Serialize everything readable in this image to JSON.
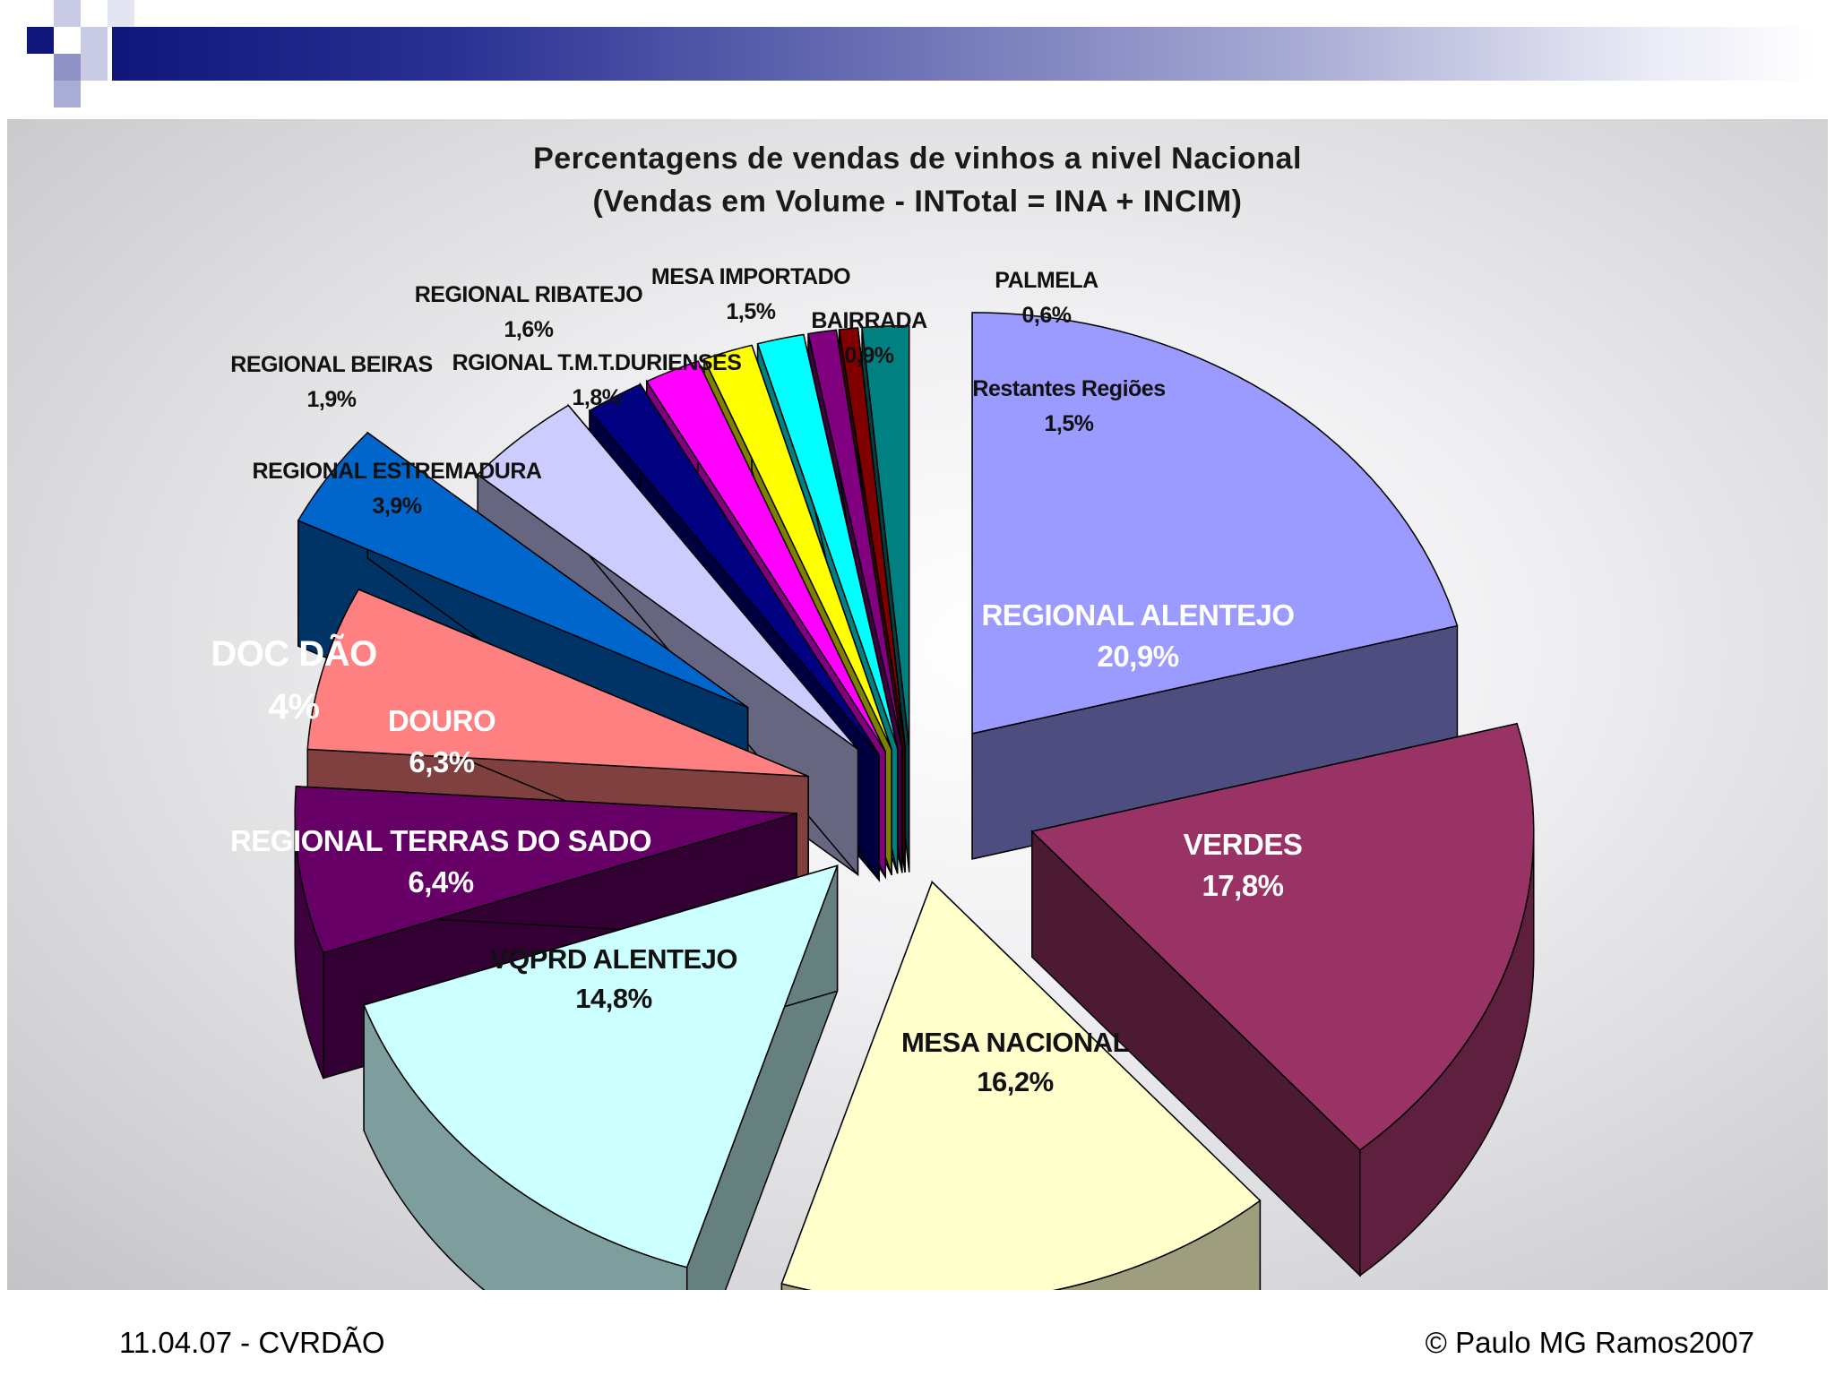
{
  "chart_data": {
    "type": "pie",
    "title": "Percentagens de vendas de vinhos a nivel Nacional",
    "subtitle": "(Vendas em Volume - INTotal = INA + INCIM)",
    "slices": [
      {
        "label": "REGIONAL ALENTEJO",
        "value_label": "20,9%",
        "value": 20.9,
        "color": "#9a9aff"
      },
      {
        "label": "VERDES",
        "value_label": "17,8%",
        "value": 17.8,
        "color": "#993366"
      },
      {
        "label": "MESA NACIONAL",
        "value_label": "16,2%",
        "value": 16.2,
        "color": "#ffffcc"
      },
      {
        "label": "VQPRD ALENTEJO",
        "value_label": "14,8%",
        "value": 14.8,
        "color": "#ccffff"
      },
      {
        "label": "REGIONAL TERRAS DO SADO",
        "value_label": "6,4%",
        "value": 6.4,
        "color": "#660066"
      },
      {
        "label": "DOURO",
        "value_label": "6,3%",
        "value": 6.3,
        "color": "#ff8080"
      },
      {
        "label": "DOC DÃO",
        "value_label": "4%",
        "value": 4,
        "color": "#0066cc"
      },
      {
        "label": "REGIONAL ESTREMADURA",
        "value_label": "3,9%",
        "value": 3.9,
        "color": "#ccccff"
      },
      {
        "label": "REGIONAL BEIRAS",
        "value_label": "1,9%",
        "value": 1.9,
        "color": "#000080"
      },
      {
        "label": "RGIONAL T.M.T.DURIENSES",
        "value_label": "1,8%",
        "value": 1.8,
        "color": "#ff00ff"
      },
      {
        "label": "REGIONAL RIBATEJO",
        "value_label": "1,6%",
        "value": 1.6,
        "color": "#ffff00"
      },
      {
        "label": "MESA IMPORTADO",
        "value_label": "1,5%",
        "value": 1.5,
        "color": "#00ffff"
      },
      {
        "label": "BAIRRADA",
        "value_label": "0,9%",
        "value": 0.9,
        "color": "#800080"
      },
      {
        "label": "PALMELA",
        "value_label": "0,6%",
        "value": 0.6,
        "color": "#800000"
      },
      {
        "label": "Restantes Regiões",
        "value_label": "1,5%",
        "value": 1.5,
        "color": "#008080"
      }
    ]
  },
  "footer": {
    "left": "11.04.07 - CVRDÃO",
    "right": "© Paulo MG Ramos2007"
  }
}
